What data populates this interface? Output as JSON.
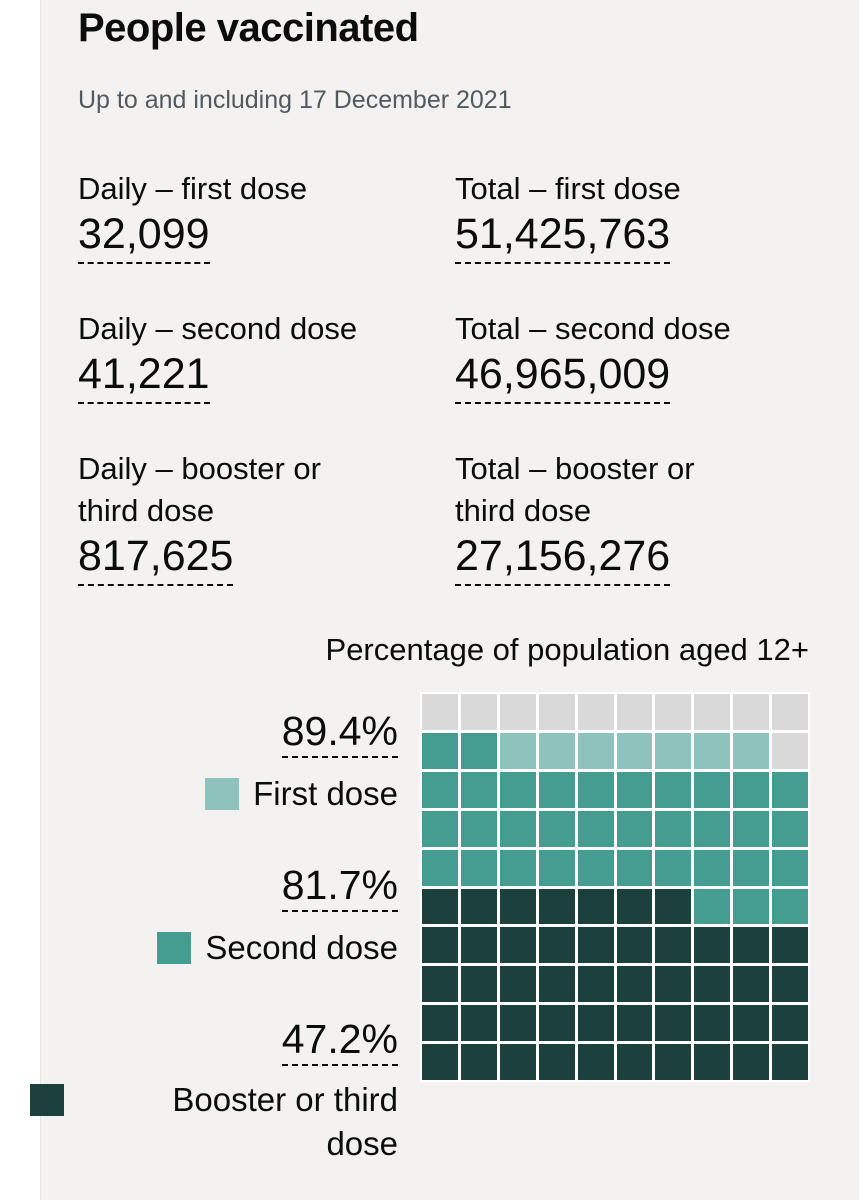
{
  "title": "People vaccinated",
  "subtitle": "Up to and including 17 December 2021",
  "metrics": {
    "daily_first": {
      "label": "Daily – first dose",
      "value": "32,099"
    },
    "daily_second": {
      "label": "Daily – second dose",
      "value": "41,221"
    },
    "daily_booster": {
      "label_line1": "Daily – booster or",
      "label_line2": "third dose",
      "value": "817,625"
    },
    "total_first": {
      "label": "Total – first dose",
      "value": "51,425,763"
    },
    "total_second": {
      "label": "Total – second dose",
      "value": "46,965,009"
    },
    "total_booster": {
      "label_line1": "Total – booster or",
      "label_line2": "third dose",
      "value": "27,156,276"
    }
  },
  "chart_data": {
    "type": "waffle",
    "title": "Percentage of population aged 12+",
    "series": [
      {
        "name": "First dose",
        "label": "89.4%",
        "value": 89.4,
        "color": "#8ec3bd"
      },
      {
        "name": "Second dose",
        "label": "81.7%",
        "value": 81.7,
        "color": "#459d91"
      },
      {
        "name": "Booster or third dose",
        "label": "47.2%",
        "value": 47.2,
        "color": "#1c403b"
      }
    ],
    "empty_color": "#d9d9d9"
  },
  "legend": {
    "first": "First dose",
    "second": "Second dose",
    "booster_line1": "Booster or third",
    "booster_line2": "dose"
  }
}
